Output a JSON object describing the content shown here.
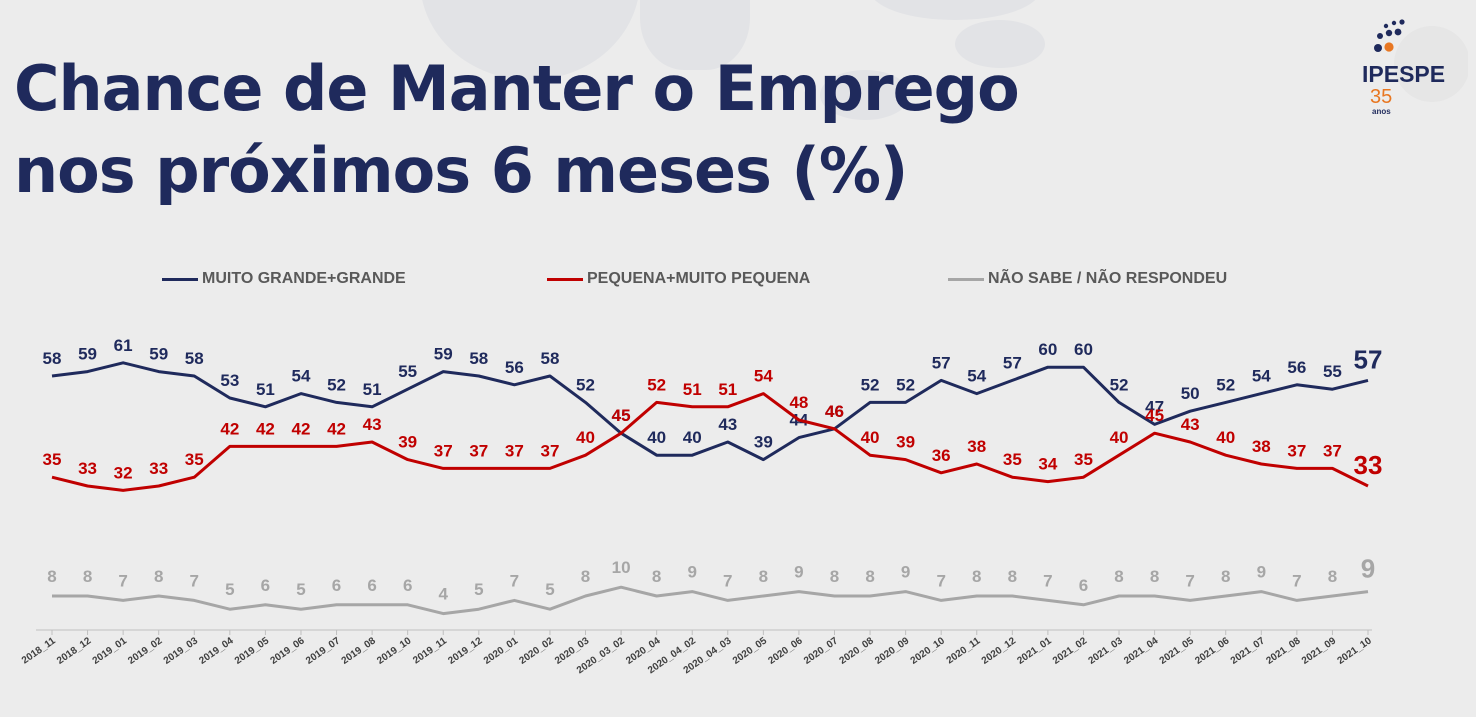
{
  "title": {
    "line1": "Chance de Manter o Emprego",
    "line2": "nos próximos 6 meses (%)"
  },
  "logo": {
    "text": "IPESPE",
    "number": "35",
    "subtext": "anos"
  },
  "colors": {
    "navy": "#1f2a5c",
    "red": "#c00000",
    "gray": "#a6a6a6",
    "title": "#1f2a5c"
  },
  "chart_data": {
    "type": "line",
    "legend_position": "top",
    "grid": false,
    "ylim": [
      0,
      70
    ],
    "categories": [
      "2018_11",
      "2018_12",
      "2019_01",
      "2019_02",
      "2019_03",
      "2019_04",
      "2019_05",
      "2019_06",
      "2019_07",
      "2019_08",
      "2019_10",
      "2019_11",
      "2019_12",
      "2020_01",
      "2020_02",
      "2020_03",
      "2020_03_02",
      "2020_04",
      "2020_04_02",
      "2020_04_03",
      "2020_05",
      "2020_06",
      "2020_07",
      "2020_08",
      "2020_09",
      "2020_10",
      "2020_11",
      "2020_12",
      "2021_01",
      "2021_02",
      "2021_03",
      "2021_04",
      "2021_05",
      "2021_06",
      "2021_07",
      "2021_08",
      "2021_09",
      "2021_10"
    ],
    "series": [
      {
        "name": "MUITO GRANDE+GRANDE",
        "color": "#1f2a5c",
        "values": [
          58,
          59,
          61,
          59,
          58,
          53,
          51,
          54,
          52,
          51,
          55,
          59,
          58,
          56,
          58,
          52,
          45,
          40,
          40,
          43,
          39,
          44,
          46,
          52,
          52,
          57,
          54,
          57,
          60,
          60,
          52,
          47,
          50,
          52,
          54,
          56,
          55,
          57
        ]
      },
      {
        "name": "PEQUENA+MUITO PEQUENA",
        "color": "#c00000",
        "values": [
          35,
          33,
          32,
          33,
          35,
          42,
          42,
          42,
          42,
          43,
          39,
          37,
          37,
          37,
          37,
          40,
          45,
          52,
          51,
          51,
          54,
          48,
          46,
          40,
          39,
          36,
          38,
          35,
          34,
          35,
          40,
          45,
          43,
          40,
          38,
          37,
          37,
          33
        ]
      },
      {
        "name": "NÃO SABE / NÃO RESPONDEU",
        "color": "#a6a6a6",
        "values": [
          8,
          8,
          7,
          8,
          7,
          5,
          6,
          5,
          6,
          6,
          6,
          4,
          5,
          7,
          5,
          8,
          10,
          8,
          9,
          7,
          8,
          9,
          8,
          8,
          9,
          7,
          8,
          8,
          7,
          6,
          8,
          8,
          7,
          8,
          9,
          7,
          8,
          9
        ]
      }
    ]
  }
}
